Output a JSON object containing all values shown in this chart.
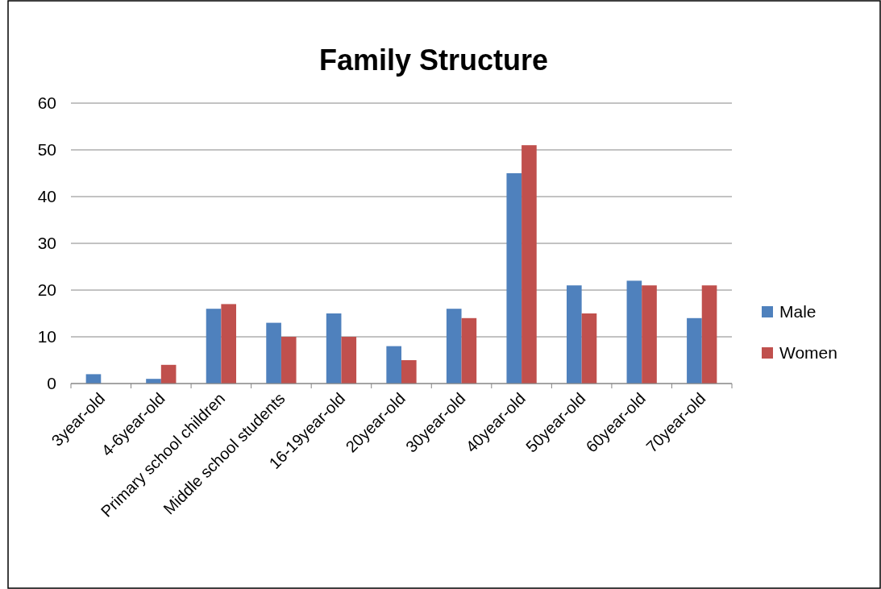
{
  "chart_data": {
    "type": "bar",
    "title": "Family Structure",
    "categories": [
      "3year-old",
      "4-6year-old",
      "Primary school children",
      "Middle school students",
      "16-19year-old",
      "20year-old",
      "30year-old",
      "40year-old",
      "50year-old",
      "60year-old",
      "70year-old"
    ],
    "series": [
      {
        "name": "Male",
        "color": "#4f81bd",
        "values": [
          2,
          1,
          16,
          13,
          15,
          8,
          16,
          45,
          21,
          22,
          14
        ]
      },
      {
        "name": "Women",
        "color": "#c0504d",
        "values": [
          0,
          4,
          17,
          10,
          10,
          5,
          14,
          51,
          15,
          21,
          21
        ]
      }
    ],
    "ylim": [
      0,
      60
    ],
    "yticks": [
      0,
      10,
      20,
      30,
      40,
      50,
      60
    ],
    "grid": "y",
    "legend": "right"
  }
}
